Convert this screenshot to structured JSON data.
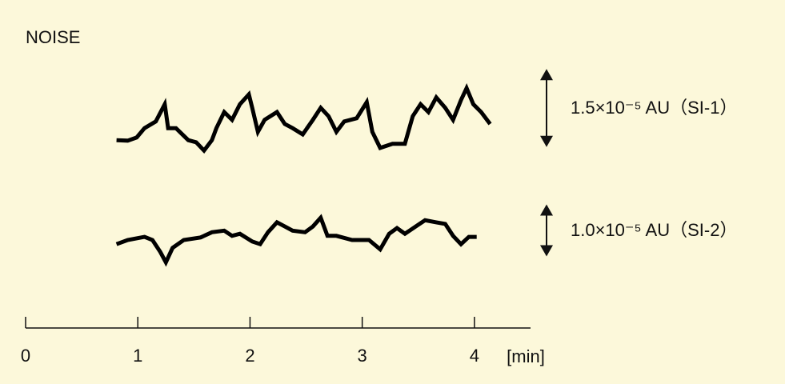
{
  "chart_data": {
    "type": "line",
    "title": "NOISE",
    "x_label": "[min]",
    "color": "#000000",
    "xlim": [
      0,
      4.5
    ],
    "xticks": [
      0,
      1,
      2,
      3,
      4
    ],
    "series": [
      {
        "name": "1.5×10⁻⁵ AU（SI-1）",
        "scale_bar": 1.5,
        "x": [
          0.81,
          0.91,
          0.99,
          1.06,
          1.16,
          1.24,
          1.27,
          1.34,
          1.45,
          1.52,
          1.59,
          1.66,
          1.7,
          1.77,
          1.84,
          1.91,
          1.99,
          2.02,
          2.07,
          2.13,
          2.24,
          2.31,
          2.38,
          2.47,
          2.56,
          2.63,
          2.7,
          2.77,
          2.84,
          2.95,
          3.04,
          3.09,
          3.16,
          3.27,
          3.38,
          3.45,
          3.52,
          3.59,
          3.66,
          3.74,
          3.81,
          3.88,
          3.93,
          3.99,
          4.06,
          4.14
        ],
        "values": [
          -0.31,
          -0.32,
          -0.26,
          -0.08,
          0.05,
          0.38,
          -0.08,
          -0.08,
          -0.31,
          -0.35,
          -0.51,
          -0.31,
          -0.08,
          0.23,
          0.08,
          0.38,
          0.57,
          0.31,
          -0.15,
          0.08,
          0.23,
          0,
          -0.08,
          -0.2,
          0.08,
          0.31,
          0.15,
          -0.15,
          0.05,
          0.11,
          0.42,
          -0.15,
          -0.46,
          -0.38,
          -0.38,
          0.15,
          0.38,
          0.23,
          0.51,
          0.31,
          0.08,
          0.46,
          0.69,
          0.38,
          0.23,
          0
        ]
      },
      {
        "name": "1.0×10⁻⁵ AU（SI-2）",
        "scale_bar": 1.0,
        "x": [
          0.81,
          0.91,
          1.06,
          1.13,
          1.2,
          1.25,
          1.31,
          1.41,
          1.56,
          1.66,
          1.77,
          1.84,
          1.91,
          2.02,
          2.09,
          2.16,
          2.24,
          2.31,
          2.38,
          2.49,
          2.56,
          2.63,
          2.69,
          2.77,
          2.91,
          3.06,
          3.16,
          3.24,
          3.31,
          3.38,
          3.49,
          3.56,
          3.66,
          3.74,
          3.81,
          3.88,
          3.95,
          4.02
        ],
        "values": [
          -0.08,
          0,
          0.06,
          0,
          -0.23,
          -0.43,
          -0.15,
          0,
          0.05,
          0.15,
          0.18,
          0.08,
          0.12,
          -0.03,
          -0.08,
          0.15,
          0.34,
          0.26,
          0.18,
          0.15,
          0.26,
          0.43,
          0.08,
          0.08,
          0,
          0,
          -0.18,
          0.12,
          0.23,
          0.12,
          0.28,
          0.38,
          0.34,
          0.31,
          0.08,
          -0.08,
          0.06,
          0.06
        ]
      }
    ]
  }
}
